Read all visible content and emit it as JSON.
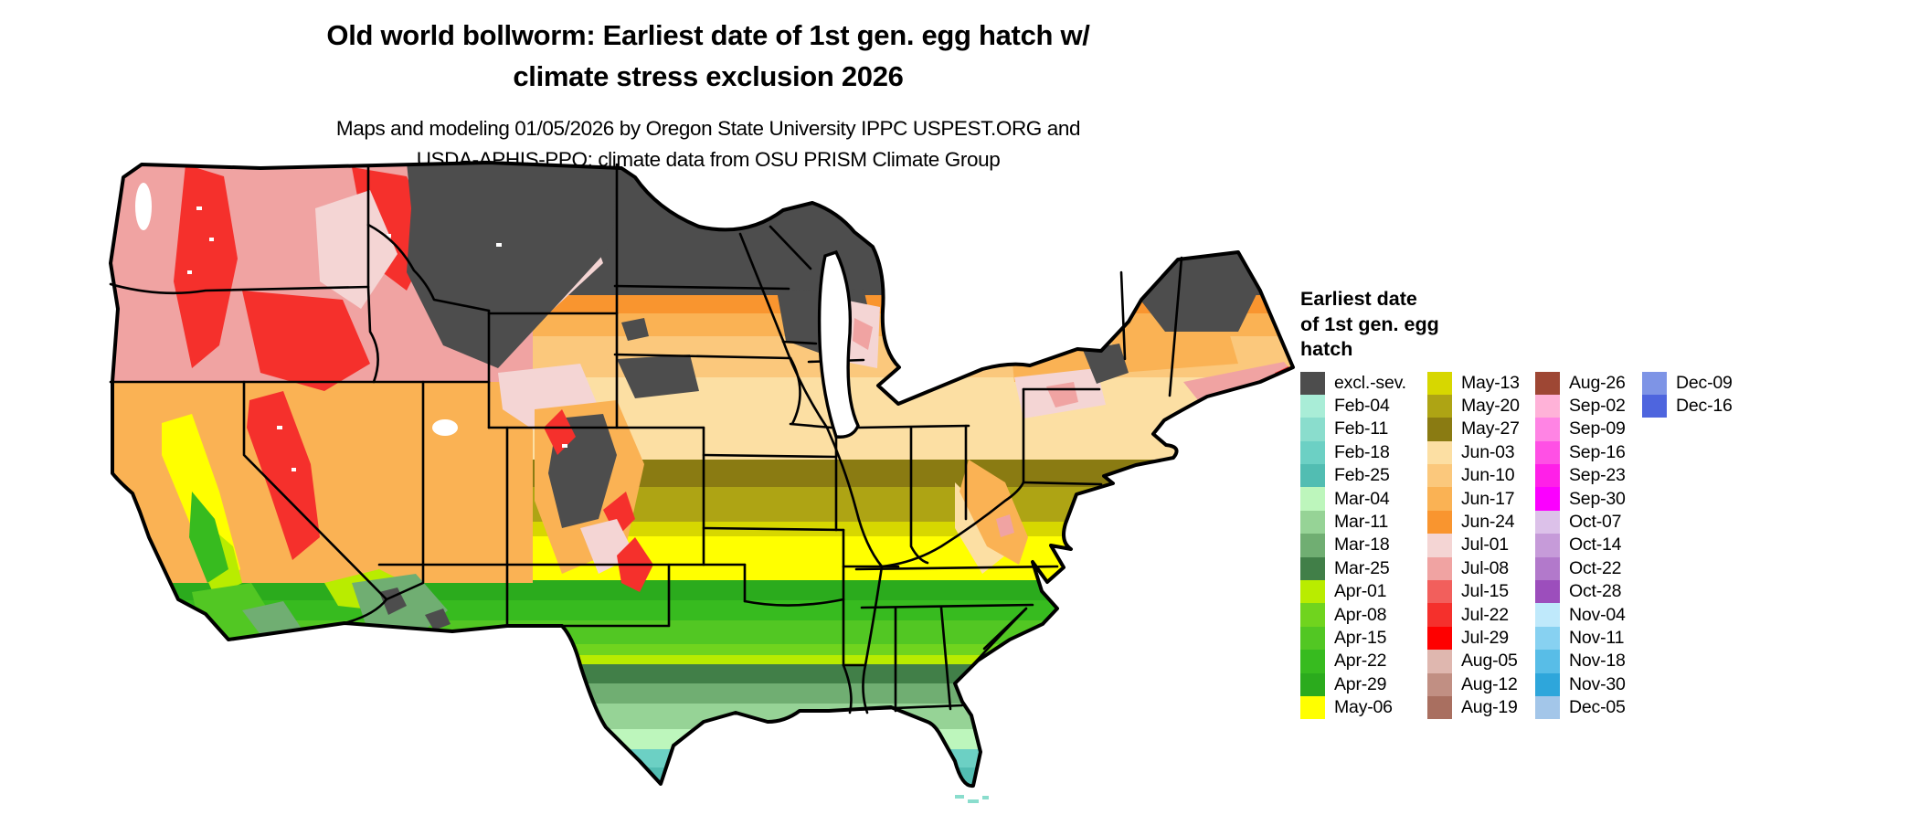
{
  "title": {
    "line1": "Old world bollworm: Earliest date of 1st gen. egg hatch w/",
    "line2": "climate stress exclusion 2026"
  },
  "subtitle": {
    "line1": "Maps and modeling 01/05/2026 by Oregon State University IPPC USPEST.ORG and",
    "line2": "USDA-APHIS-PPQ; climate data from OSU PRISM Climate Group"
  },
  "legend": {
    "title_lines": "Earliest date\nof 1st gen. egg\nhatch",
    "columns": [
      {
        "entries": [
          {
            "label": "excl.-sev.",
            "color": "#4D4D4D"
          },
          {
            "label": "Feb-04",
            "color": "#A9EDD7"
          },
          {
            "label": "Feb-11",
            "color": "#8ADDCD"
          },
          {
            "label": "Feb-18",
            "color": "#6CD0C4"
          },
          {
            "label": "Feb-25",
            "color": "#52BDB2"
          },
          {
            "label": "Mar-04",
            "color": "#BDF6BC"
          },
          {
            "label": "Mar-11",
            "color": "#96D396"
          },
          {
            "label": "Mar-18",
            "color": "#70AE72"
          },
          {
            "label": "Mar-25",
            "color": "#417F48"
          },
          {
            "label": "Apr-01",
            "color": "#B9EC00"
          },
          {
            "label": "Apr-08",
            "color": "#70D41E"
          },
          {
            "label": "Apr-15",
            "color": "#52C723"
          },
          {
            "label": "Apr-22",
            "color": "#37BB1F"
          },
          {
            "label": "Apr-29",
            "color": "#2BAB1D"
          },
          {
            "label": "May-06",
            "color": "#FFFF00"
          }
        ]
      },
      {
        "entries": [
          {
            "label": "May-13",
            "color": "#D7D700"
          },
          {
            "label": "May-20",
            "color": "#AEA414"
          },
          {
            "label": "May-27",
            "color": "#8A7B12"
          },
          {
            "label": "Jun-03",
            "color": "#FCDFA3"
          },
          {
            "label": "Jun-10",
            "color": "#FBC87C"
          },
          {
            "label": "Jun-17",
            "color": "#FAB254"
          },
          {
            "label": "Jun-24",
            "color": "#F9952F"
          },
          {
            "label": "Jul-01",
            "color": "#F4D5D4"
          },
          {
            "label": "Jul-08",
            "color": "#F0A3A2"
          },
          {
            "label": "Jul-15",
            "color": "#F25F5C"
          },
          {
            "label": "Jul-22",
            "color": "#F5302C"
          },
          {
            "label": "Jul-29",
            "color": "#FE0000"
          },
          {
            "label": "Aug-05",
            "color": "#DFB7AF"
          },
          {
            "label": "Aug-12",
            "color": "#C18F83"
          },
          {
            "label": "Aug-19",
            "color": "#A96F60"
          }
        ]
      },
      {
        "entries": [
          {
            "label": "Aug-26",
            "color": "#9E4734"
          },
          {
            "label": "Sep-02",
            "color": "#FFB2D8"
          },
          {
            "label": "Sep-09",
            "color": "#FF84E4"
          },
          {
            "label": "Sep-16",
            "color": "#FF50E5"
          },
          {
            "label": "Sep-23",
            "color": "#FF20E8"
          },
          {
            "label": "Sep-30",
            "color": "#FB00FF"
          },
          {
            "label": "Oct-07",
            "color": "#DCC1E9"
          },
          {
            "label": "Oct-14",
            "color": "#C69BD9"
          },
          {
            "label": "Oct-22",
            "color": "#B279CB"
          },
          {
            "label": "Oct-28",
            "color": "#9C4EBC"
          },
          {
            "label": "Nov-04",
            "color": "#BFE9FB"
          },
          {
            "label": "Nov-11",
            "color": "#87D1F1"
          },
          {
            "label": "Nov-18",
            "color": "#58BDE7"
          },
          {
            "label": "Nov-30",
            "color": "#2EA6DB"
          },
          {
            "label": "Dec-05",
            "color": "#A3C6E9"
          }
        ]
      },
      {
        "entries": [
          {
            "label": "Dec-09",
            "color": "#7E94E6"
          },
          {
            "label": "Dec-16",
            "color": "#4E65DE"
          }
        ]
      }
    ]
  },
  "map": {
    "region": "conterminous United States",
    "background_color": "#FFFFFF",
    "state_border_color": "#000000",
    "excluded_severe_color": "#4D4D4D"
  }
}
